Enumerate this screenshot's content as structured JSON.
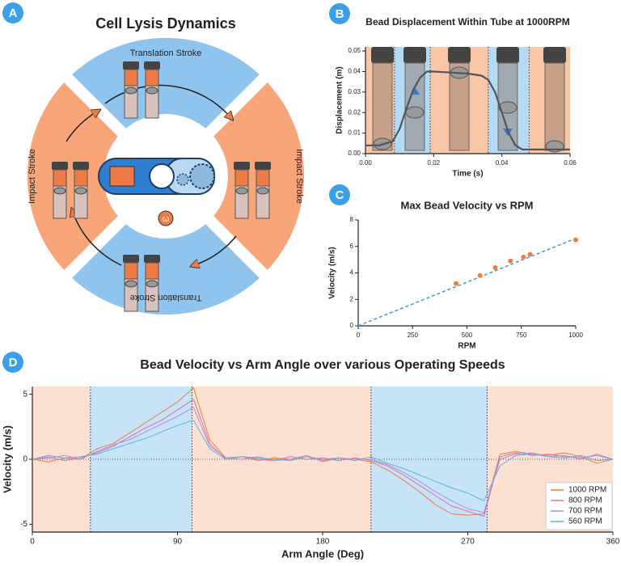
{
  "panel_labels": [
    "A",
    "B",
    "C",
    "D"
  ],
  "diagram": {
    "title": "Cell Lysis Dynamics",
    "top": "Translation Stroke",
    "bottom": "Translation Stroke",
    "left": "Impact Stroke",
    "right": "Impact Stroke",
    "omega": "ω"
  },
  "chart_data": [
    {
      "type": "line",
      "title": "Bead Displacement Within Tube at 1000RPM",
      "x_label": "Time (s)",
      "y_label": "Displacement (m)",
      "x": [
        0,
        0.004,
        0.008,
        0.01,
        0.012,
        0.014,
        0.016,
        0.018,
        0.02,
        0.025,
        0.03,
        0.034,
        0.036,
        0.038,
        0.04,
        0.042,
        0.044,
        0.046,
        0.05,
        0.055,
        0.06
      ],
      "values": [
        0.004,
        0.004,
        0.006,
        0.012,
        0.022,
        0.031,
        0.037,
        0.04,
        0.04,
        0.0395,
        0.039,
        0.038,
        0.036,
        0.03,
        0.02,
        0.01,
        0.004,
        0.002,
        0.002,
        0.002,
        0.002
      ],
      "color": "#555555",
      "xlim": [
        0,
        0.06
      ],
      "xticks": [
        {
          "value": 0,
          "label": "0.00"
        },
        {
          "value": 0.02,
          "label": "0.02"
        },
        {
          "value": 0.04,
          "label": "0.04"
        },
        {
          "value": 0.06,
          "label": "0.06"
        }
      ],
      "ylim": [
        0,
        0.052
      ],
      "yticks": [
        {
          "value": 0,
          "label": "0.00"
        },
        {
          "value": 0.01,
          "label": "0.01"
        },
        {
          "value": 0.02,
          "label": "0.02"
        },
        {
          "value": 0.03,
          "label": "0.03"
        },
        {
          "value": 0.04,
          "label": "0.04"
        },
        {
          "value": 0.05,
          "label": "0.05"
        }
      ],
      "regions": [
        {
          "start": 0,
          "end": 0.0085,
          "color": "#f9c6a8"
        },
        {
          "start": 0.0085,
          "end": 0.019,
          "color": "#b5daf4"
        },
        {
          "start": 0.019,
          "end": 0.036,
          "color": "#f9c6a8"
        },
        {
          "start": 0.036,
          "end": 0.048,
          "color": "#b5daf4"
        },
        {
          "start": 0.048,
          "end": 0.06,
          "color": "#f9c6a8"
        }
      ],
      "region_dividers": true
    },
    {
      "type": "scatter",
      "title": "Max Bead Velocity vs  RPM",
      "x_label": "RPM",
      "y_label": "Velocity (m/s)",
      "x": [
        450,
        560,
        630,
        700,
        760,
        790,
        1000
      ],
      "values": [
        3.2,
        3.8,
        4.4,
        4.9,
        5.2,
        5.4,
        6.5
      ],
      "color": "#f07f3c",
      "fit": {
        "x": [
          0,
          1000
        ],
        "values": [
          0,
          6.6
        ],
        "color": "#3a9ad9"
      },
      "xlim": [
        0,
        1000
      ],
      "xticks": [
        0,
        250,
        500,
        750,
        1000
      ],
      "ylim": [
        0,
        8
      ],
      "yticks": [
        0,
        2,
        4,
        6,
        8
      ]
    },
    {
      "type": "line",
      "title": "Bead Velocity vs Arm Angle over various Operating Speeds",
      "x_label": "Arm Angle (Deg)",
      "y_label": "Velocity (m/s)",
      "x": [
        0,
        10,
        20,
        30,
        40,
        50,
        60,
        70,
        80,
        90,
        100,
        110,
        120,
        130,
        140,
        150,
        160,
        170,
        180,
        190,
        200,
        210,
        220,
        230,
        240,
        250,
        260,
        270,
        280,
        290,
        300,
        310,
        320,
        330,
        340,
        350,
        360
      ],
      "series": [
        {
          "name": "1000 RPM",
          "color": "#e8803a",
          "values": [
            0,
            -0.2,
            0.1,
            0,
            0.8,
            1.2,
            2.0,
            2.8,
            3.6,
            4.4,
            5.5,
            1.5,
            0.1,
            0.2,
            -0.1,
            0.1,
            0,
            0.2,
            -0.1,
            0.1,
            0,
            -0.2,
            -0.8,
            -1.6,
            -2.5,
            -3.5,
            -4.2,
            -4.3,
            -4.2,
            0.4,
            0.6,
            0.4,
            0.3,
            0.5,
            0.2,
            -0.3,
            0
          ]
        },
        {
          "name": "800 RPM",
          "color": "#d86fb0",
          "values": [
            0,
            0.2,
            -0.1,
            0.1,
            0.5,
            1.0,
            1.7,
            2.4,
            3.0,
            3.8,
            4.6,
            1.2,
            0.0,
            0.2,
            0.0,
            -0.1,
            0.2,
            0,
            0.1,
            -0.1,
            0.1,
            -0.1,
            -0.5,
            -1.2,
            -2.0,
            -2.8,
            -3.6,
            -4.0,
            -4.4,
            0.2,
            0.5,
            0.3,
            0.4,
            0.2,
            0.1,
            0.3,
            0
          ]
        },
        {
          "name": "700 RPM",
          "color": "#b08de0",
          "values": [
            0,
            0.1,
            0.3,
            0,
            0.6,
            1.1,
            1.5,
            2.1,
            2.7,
            3.3,
            4.0,
            1.0,
            0.1,
            0,
            0.2,
            -0.1,
            0,
            0.3,
            -0.2,
            0.1,
            0,
            0,
            -0.4,
            -1.0,
            -1.7,
            -2.5,
            -3.2,
            -3.8,
            -4.1,
            0,
            0.4,
            0.5,
            0.2,
            0.3,
            0,
            0.4,
            0
          ]
        },
        {
          "name": "560 RPM",
          "color": "#5ab4d6",
          "values": [
            0,
            0.3,
            0.1,
            0.2,
            0.4,
            0.8,
            1.2,
            1.6,
            2.1,
            2.6,
            3.0,
            0.8,
            0,
            0.2,
            0.1,
            0,
            -0.1,
            0.2,
            0,
            0.1,
            -0.1,
            0.2,
            -0.3,
            -0.7,
            -1.2,
            -1.7,
            -2.2,
            -2.6,
            -3.2,
            -0.5,
            0.3,
            0.4,
            0.2,
            0.1,
            0.3,
            -0.1,
            0
          ]
        }
      ],
      "xlim": [
        0,
        360
      ],
      "xticks": [
        0,
        90,
        180,
        270,
        360
      ],
      "ylim": [
        -5.6,
        5.6
      ],
      "yticks": [
        -5,
        0,
        5
      ],
      "regions": [
        {
          "start": 0,
          "end": 36,
          "color": "#fce1d3"
        },
        {
          "start": 36,
          "end": 99,
          "color": "#c7e3f8"
        },
        {
          "start": 99,
          "end": 210,
          "color": "#fce1d3"
        },
        {
          "start": 210,
          "end": 282,
          "color": "#c7e3f8"
        },
        {
          "start": 282,
          "end": 360,
          "color": "#fce1d3"
        }
      ],
      "region_dividers": true,
      "zero_line": true,
      "legend": "lower right"
    }
  ]
}
